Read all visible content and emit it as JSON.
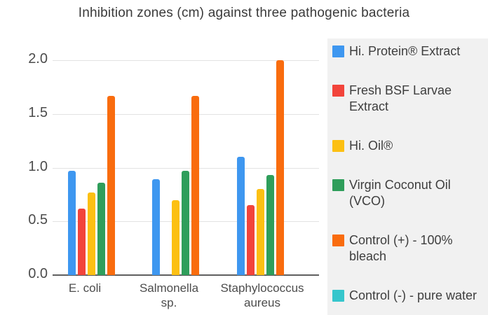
{
  "chart_data": {
    "type": "bar",
    "title": "Inhibition zones (cm) against three pathogenic bacteria",
    "xlabel": "",
    "ylabel": "",
    "unit": "cm",
    "ylim": [
      0,
      2.0
    ],
    "yticks": [
      0,
      0.5,
      1.0,
      1.5,
      2.0
    ],
    "ytick_labels": [
      "0.0",
      "0.5",
      "1.0",
      "1.5",
      "2.0"
    ],
    "grid": true,
    "legend_position": "right",
    "categories": [
      "E. coli",
      "Salmonella sp.",
      "Staphylococcus aureus"
    ],
    "category_label_lines": [
      [
        "E. coli"
      ],
      [
        "Salmonella",
        "sp."
      ],
      [
        "Staphylococcus",
        "aureus"
      ]
    ],
    "series": [
      {
        "name": "Hi. Protein® Extract",
        "color": "#3e97f0",
        "values": [
          0.97,
          0.89,
          1.1
        ]
      },
      {
        "name": "Fresh BSF Larvae Extract",
        "color": "#f2443b",
        "values": [
          0.62,
          0,
          0.65
        ]
      },
      {
        "name": "Hi. Oil®",
        "color": "#fcc013",
        "values": [
          0.77,
          0.7,
          0.8
        ]
      },
      {
        "name": "Virgin Coconut Oil (VCO)",
        "color": "#2f9e5b",
        "values": [
          0.86,
          0.97,
          0.93
        ]
      },
      {
        "name": "Control (+) - 100% bleach",
        "color": "#f96c0e",
        "values": [
          1.67,
          1.67,
          2.0
        ]
      },
      {
        "name": "Control (-) - pure water",
        "color": "#36c6cc",
        "values": [
          0,
          0,
          0
        ]
      }
    ]
  },
  "colors": {
    "background": "#ffffff",
    "legend_background": "#f1f1f1",
    "gridline": "#e3e3e3",
    "axis_line": "#5f5f5f",
    "title_text": "#3a3a3a",
    "tick_text": "#4c4c4c",
    "legend_text": "#3e3e3e"
  }
}
